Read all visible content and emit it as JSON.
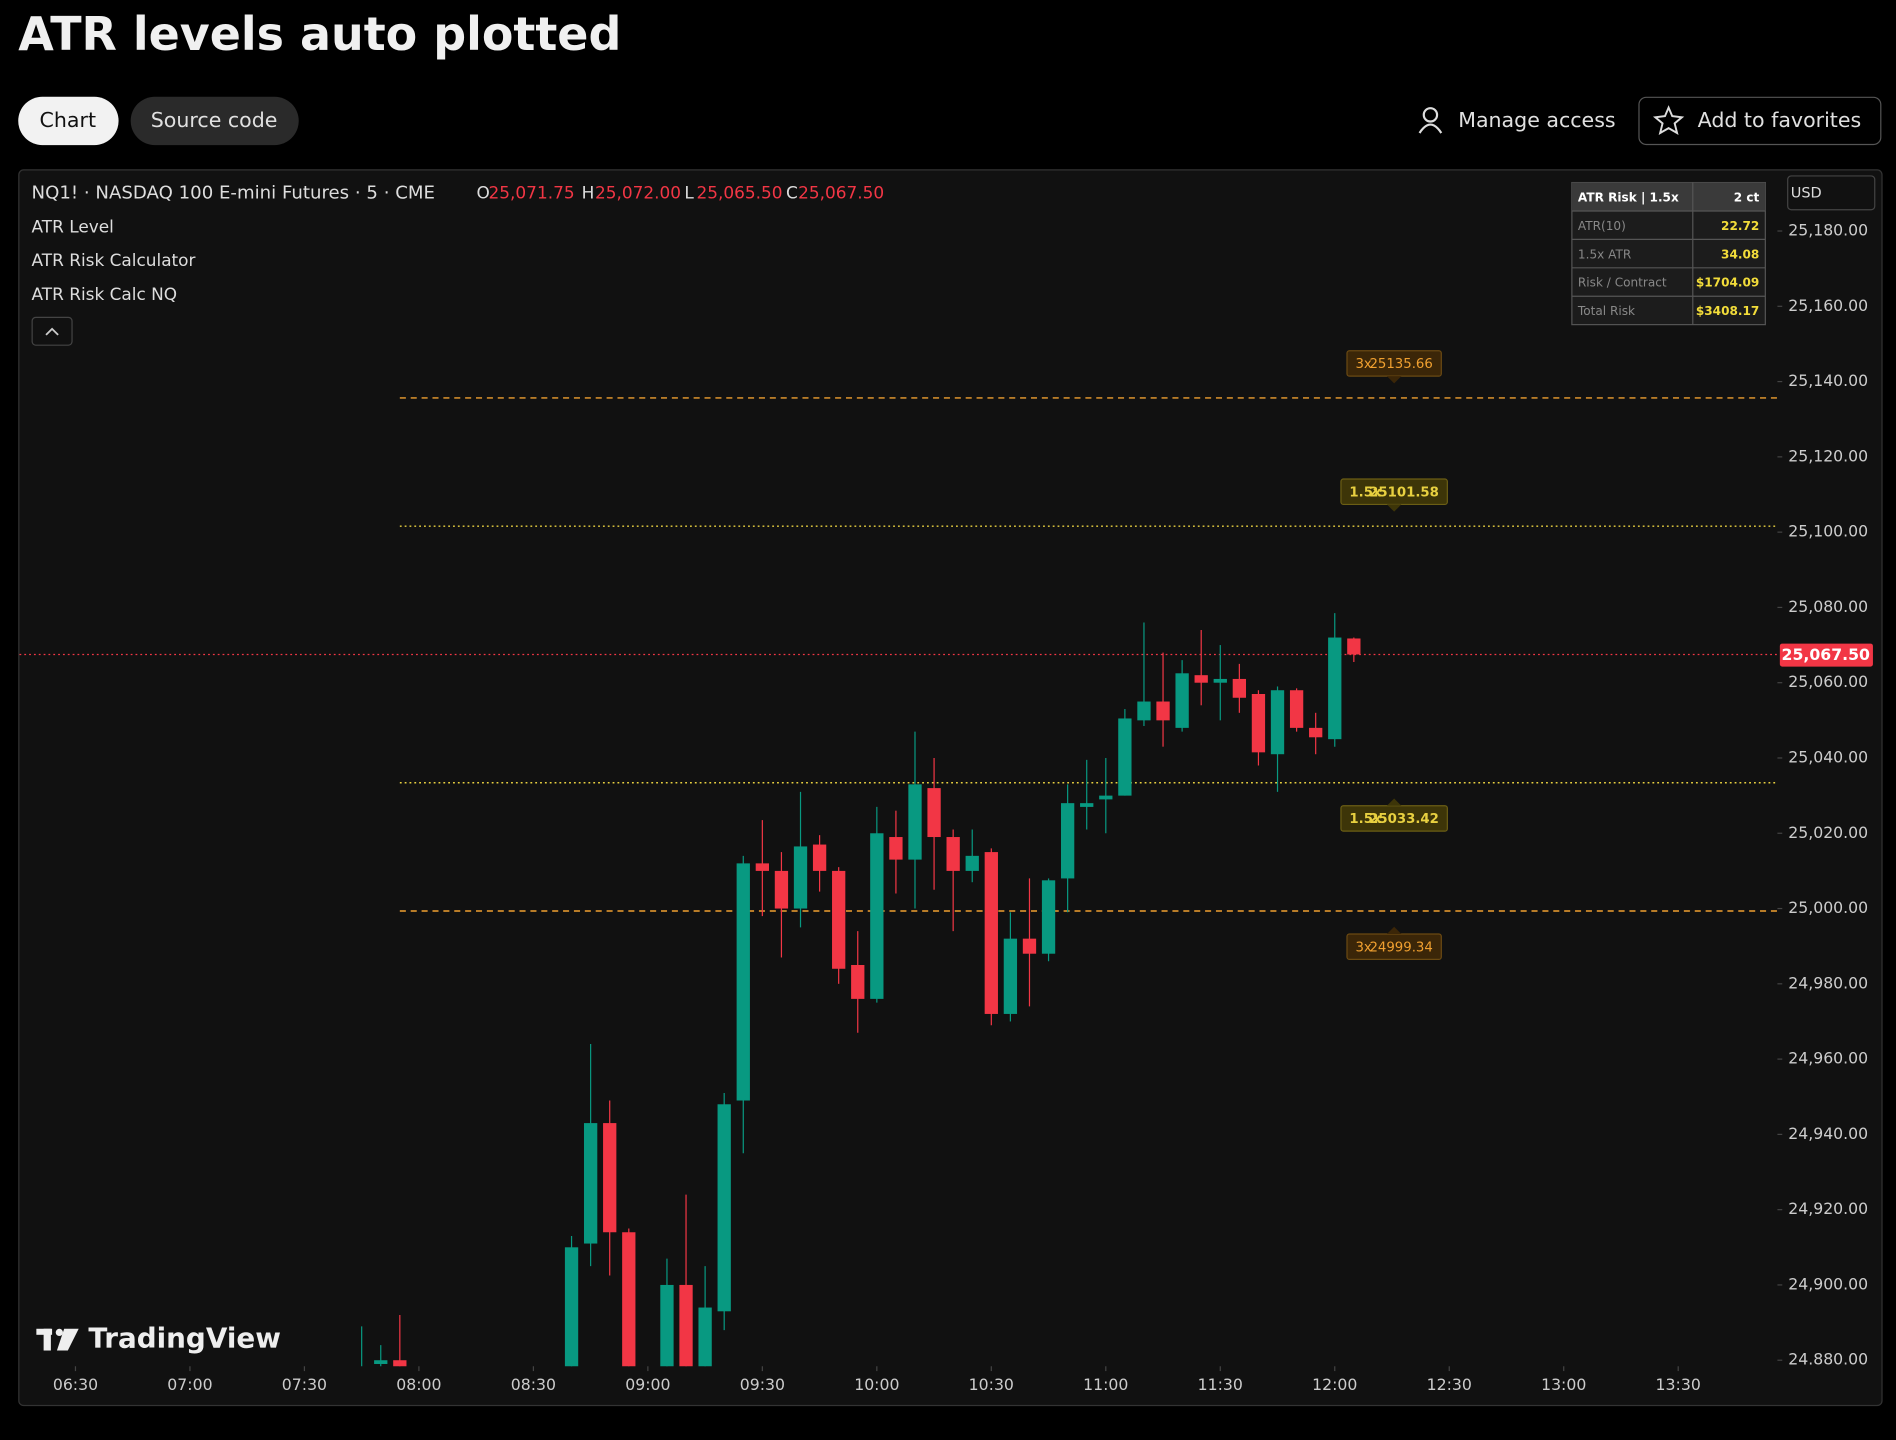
{
  "header": {
    "title": "ATR levels auto plotted",
    "tabs": [
      "Chart",
      "Source code"
    ],
    "actions": [
      "Manage access",
      "Add to favorites"
    ]
  },
  "chart_data": {
    "type": "candlestick",
    "symbol": "NQ1! · NASDAQ 100 E-mini Futures · 5 · CME",
    "ohlc_legend": [
      {
        "key": "O",
        "text": "25,071.75"
      },
      {
        "key": "H",
        "text": "25,072.00"
      },
      {
        "key": "L",
        "text": "25,065.50"
      },
      {
        "key": "C",
        "text": "25,067.50"
      }
    ],
    "indicators": [
      "ATR Level",
      "ATR Risk Calculator",
      "ATR Risk Calc NQ"
    ],
    "currency": "USD",
    "x": [
      "07:45",
      "07:50",
      "07:55",
      "08:40",
      "08:45",
      "08:50",
      "08:55",
      "09:05",
      "09:10",
      "09:15",
      "09:20",
      "09:25",
      "09:30",
      "09:35",
      "09:40",
      "09:45",
      "09:50",
      "09:55",
      "10:00",
      "10:05",
      "10:10",
      "10:15",
      "10:20",
      "10:25",
      "10:30",
      "10:35",
      "10:40",
      "10:45",
      "10:50",
      "10:55",
      "11:00",
      "11:05",
      "11:10",
      "11:15",
      "11:20",
      "11:25",
      "11:30",
      "11:35",
      "11:40",
      "11:45",
      "11:50",
      "11:55",
      "12:00",
      "12:05"
    ],
    "open": [
      24877,
      24879,
      24880,
      24870,
      24911,
      24943,
      24914,
      24872,
      24900,
      24872,
      24893,
      24949,
      25012,
      25010,
      25000,
      25017,
      25010,
      24985,
      24976,
      25019,
      25013,
      25032,
      25019,
      25010,
      25015,
      24972,
      24992,
      24988,
      25008,
      25027,
      25029,
      25030,
      25050,
      25055,
      25048,
      25062,
      25060,
      25061,
      25057,
      25041,
      25058,
      25048,
      25045,
      25071.75
    ],
    "high": [
      24889,
      24884,
      24892,
      24913,
      24964,
      24949,
      24915,
      24907,
      24924,
      24905,
      24951,
      25014,
      25023.5,
      25015,
      25031,
      25019.5,
      25011,
      24994,
      25027,
      25026,
      25047,
      25040,
      25021,
      25021,
      25016,
      24999,
      25008,
      25008,
      25033,
      25039.5,
      25040,
      25053,
      25076,
      25068,
      25066,
      25074,
      25070,
      25065,
      25058,
      25059,
      25058.5,
      25052,
      25078.5,
      25072
    ],
    "low": [
      24870,
      24875,
      24872,
      24865,
      24905,
      24902.5,
      24860,
      24865,
      24862,
      24866,
      24888,
      24935,
      24998,
      24987,
      24995,
      25004.5,
      24980,
      24967,
      24975,
      25004,
      25000,
      25005,
      24994,
      25007,
      24969,
      24970,
      24974,
      24986,
      24999,
      25021,
      25020,
      25030,
      25048.5,
      25043,
      25047,
      25054,
      25050,
      25052,
      25038,
      25031,
      25047,
      25041,
      25043,
      25065.5
    ],
    "close": [
      24878,
      24880,
      24878,
      24910,
      24943,
      24914,
      24870,
      24900,
      24870,
      24894,
      24948,
      25012,
      25010,
      25000,
      25016.5,
      25010,
      24984,
      24976,
      25020,
      25013,
      25033,
      25019,
      25010,
      25014,
      24972,
      24992,
      24988,
      25007.5,
      25028,
      25028,
      25030,
      25050.5,
      25055,
      25050,
      25062.5,
      25060,
      25061,
      25056,
      25041.5,
      25058,
      25048,
      25045.5,
      25072,
      25067.5
    ],
    "up_color": "#089981",
    "down_color": "#f23645",
    "xlim": [
      "06:15",
      "13:56"
    ],
    "xticks": [
      "06:30",
      "07:00",
      "07:30",
      "08:00",
      "08:30",
      "09:00",
      "09:30",
      "10:00",
      "10:30",
      "11:00",
      "11:30",
      "12:00",
      "12:30",
      "13:00",
      "13:30"
    ],
    "ylim": [
      24878.4,
      25194.8
    ],
    "yticks": [
      {
        "value": 25180,
        "label": "25,180.00"
      },
      {
        "value": 25160,
        "label": "25,160.00"
      },
      {
        "value": 25140,
        "label": "25,140.00"
      },
      {
        "value": 25120,
        "label": "25,120.00"
      },
      {
        "value": 25100,
        "label": "25,100.00"
      },
      {
        "value": 25080,
        "label": "25,080.00"
      },
      {
        "value": 25060,
        "label": "25,060.00"
      },
      {
        "value": 25040,
        "label": "25,040.00"
      },
      {
        "value": 25020,
        "label": "25,020.00"
      },
      {
        "value": 25000,
        "label": "25,000.00"
      },
      {
        "value": 24980,
        "label": "24,980.00"
      },
      {
        "value": 24960,
        "label": "24,960.00"
      },
      {
        "value": 24940,
        "label": "24,940.00"
      },
      {
        "value": 24920,
        "label": "24,920.00"
      },
      {
        "value": 24900,
        "label": "24,900.00"
      },
      {
        "value": 24880,
        "label": "24.880.00"
      }
    ],
    "last_price": {
      "value": 25067.5,
      "label": "25,067.50"
    },
    "levels": [
      {
        "name": "3x",
        "value": 25135.66,
        "color": "#f0a030",
        "style": "dashed",
        "side": "above"
      },
      {
        "name": "1.5x",
        "value": 25101.58,
        "color": "#e8d040",
        "style": "dotted",
        "side": "above"
      },
      {
        "name": "1.5x",
        "value": 25033.42,
        "color": "#e8d040",
        "style": "dotted",
        "side": "below"
      },
      {
        "name": "3x",
        "value": 24999.34,
        "color": "#f0a030",
        "style": "dashed",
        "side": "below"
      }
    ],
    "risk_table": {
      "header": [
        "ATR Risk  |  1.5x",
        "2 ct"
      ],
      "rows": [
        [
          "ATR(10)",
          "22.72"
        ],
        [
          "1.5x ATR",
          "34.08"
        ],
        [
          "Risk / Contract",
          "$1704.09"
        ],
        [
          "Total Risk",
          "$3408.17"
        ]
      ]
    },
    "watermark": "TradingView"
  }
}
